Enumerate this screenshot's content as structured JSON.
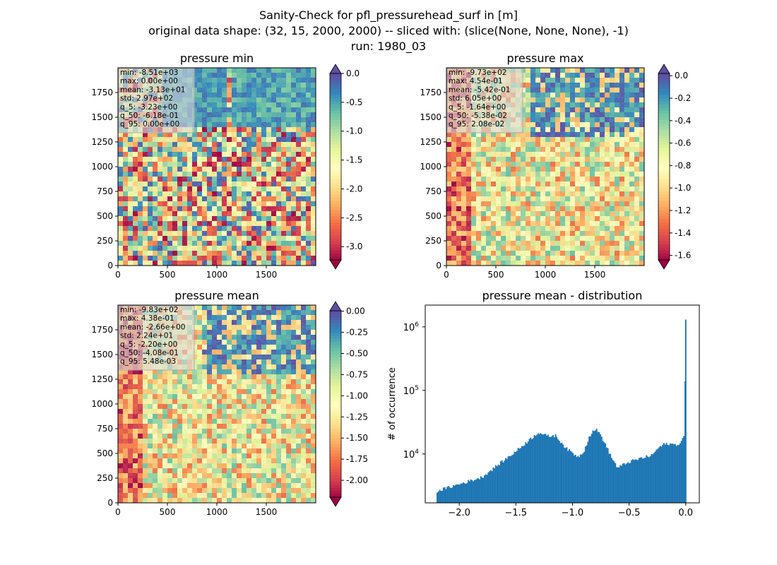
{
  "figure": {
    "title_lines": [
      "Sanity-Check for pfl_pressurehead_surf in [m]",
      "original data shape: (32, 15, 2000, 2000) -- sliced with: (slice(None, None, None), -1)",
      "run: 1980_03"
    ]
  },
  "panels": [
    {
      "title": "pressure min",
      "stats": [
        "min: -8.51e+03",
        "max: 0.00e+00",
        "mean: -3.13e+01",
        "std: 2.97e+02",
        "q_5: -3.23e+00",
        "q_50: -6.18e-01",
        "q_95: 0.00e+00"
      ],
      "xticks": [
        "0",
        "500",
        "1000",
        "1500"
      ],
      "yticks": [
        "0",
        "250",
        "500",
        "750",
        "1000",
        "1250",
        "1500",
        "1750"
      ],
      "colorbar": {
        "ticks": [
          "0.0",
          "-0.5",
          "-1.0",
          "-1.5",
          "-2.0",
          "-2.5",
          "-3.0"
        ],
        "range": [
          -3.23,
          0.0
        ],
        "extend": "both"
      }
    },
    {
      "title": "pressure max",
      "stats": [
        "min: -9.73e+02",
        "max: 4.54e-01",
        "mean: -5.42e-01",
        "std: 6.05e+00",
        "q_5: -1.64e+00",
        "q_50: -5.38e-02",
        "q_95: 2.08e-02"
      ],
      "xticks": [
        "0",
        "500",
        "1000",
        "1500"
      ],
      "yticks": [
        "0",
        "250",
        "500",
        "750",
        "1000",
        "1250",
        "1500",
        "1750"
      ],
      "colorbar": {
        "ticks": [
          "0.0",
          "-0.2",
          "-0.4",
          "-0.6",
          "-0.8",
          "-1.0",
          "-1.2",
          "-1.4",
          "-1.6"
        ],
        "range": [
          -1.64,
          0.02
        ],
        "extend": "both"
      }
    },
    {
      "title": "pressure mean",
      "stats": [
        "min: -9.83e+02",
        "max: 4.38e-01",
        "mean: -2.66e+00",
        "std: 2.24e+01",
        "q_5: -2.20e+00",
        "q_50: -4.08e-01",
        "q_95: 5.48e-03"
      ],
      "xticks": [
        "0",
        "500",
        "1000",
        "1500"
      ],
      "yticks": [
        "0",
        "250",
        "500",
        "750",
        "1000",
        "1250",
        "1500",
        "1750"
      ],
      "colorbar": {
        "ticks": [
          "0.00",
          "-0.25",
          "-0.50",
          "-0.75",
          "-1.00",
          "-1.25",
          "-1.50",
          "-1.75",
          "-2.00"
        ],
        "range": [
          -2.2,
          0.005
        ],
        "extend": "both"
      }
    }
  ],
  "colormap": "Spectral",
  "chart_data": [
    {
      "type": "heatmap",
      "title": "pressure min",
      "xlim": [
        0,
        2000
      ],
      "ylim": [
        0,
        2000
      ],
      "colormap": "Spectral",
      "vmin": -3.23,
      "vmax": 0.0,
      "color_ticks": [
        0.0,
        -0.5,
        -1.0,
        -1.5,
        -2.0,
        -2.5,
        -3.0
      ]
    },
    {
      "type": "heatmap",
      "title": "pressure max",
      "xlim": [
        0,
        2000
      ],
      "ylim": [
        0,
        2000
      ],
      "colormap": "Spectral",
      "vmin": -1.64,
      "vmax": 0.02,
      "color_ticks": [
        0.0,
        -0.2,
        -0.4,
        -0.6,
        -0.8,
        -1.0,
        -1.2,
        -1.4,
        -1.6
      ]
    },
    {
      "type": "heatmap",
      "title": "pressure mean",
      "xlim": [
        0,
        2000
      ],
      "ylim": [
        0,
        2000
      ],
      "colormap": "Spectral",
      "vmin": -2.2,
      "vmax": 0.005,
      "color_ticks": [
        0.0,
        -0.25,
        -0.5,
        -0.75,
        -1.0,
        -1.25,
        -1.5,
        -1.75,
        -2.0
      ]
    },
    {
      "type": "bar",
      "title": "pressure mean - distribution",
      "ylabel": "# of occurrence",
      "xlabel": "",
      "yscale": "log",
      "xlim": [
        -2.3,
        0.12
      ],
      "ylim": [
        1700,
        2200000
      ],
      "xticks": [
        -2.0,
        -1.5,
        -1.0,
        -0.5,
        0.0
      ],
      "xtick_labels": [
        "−2.0",
        "−1.5",
        "−1.0",
        "−0.5",
        "0.0"
      ],
      "ytick_labels": [
        "10",
        "10",
        "10"
      ],
      "ytick_exponents": [
        "4",
        "5",
        "6"
      ],
      "ytick_values": [
        10000,
        100000,
        1000000
      ],
      "color": "#1f77b4",
      "x": [
        -2.2,
        -1.8,
        -1.5,
        -1.3,
        -1.22,
        -1.15,
        -1.05,
        -0.95,
        -0.9,
        -0.85,
        -0.8,
        -0.75,
        -0.7,
        -0.65,
        -0.6,
        -0.55,
        -0.5,
        -0.4,
        -0.3,
        -0.25,
        -0.2,
        -0.15,
        -0.1,
        -0.05,
        -0.01,
        0.0
      ],
      "values": [
        2600,
        4300,
        11000,
        22000,
        19000,
        19500,
        12000,
        9000,
        11000,
        19000,
        25000,
        20000,
        13000,
        8500,
        6000,
        6800,
        7500,
        8500,
        9500,
        12000,
        14000,
        14500,
        14000,
        14500,
        20000,
        1300000
      ]
    }
  ]
}
